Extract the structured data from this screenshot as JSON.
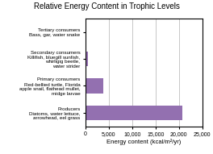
{
  "chart_data": {
    "type": "bar",
    "orientation": "horizontal",
    "title": "Relative Energy Content in Trophic Levels",
    "categories": [
      "Producers\nDiatoms, water lettuce,\narrowhead, eel grass",
      "Primary consumers\nRed-bellied turtle, Florida\napple snail, flathead mullet,\nmidge larvae",
      "Secondary consumers\nKillifish, bluegill sunfish,\nwhirligig beetle,\nwater strider",
      "Tertiary consumers\nBass, gar, water snake"
    ],
    "values": [
      20810,
      3800,
      500,
      100
    ],
    "color": "#9370b0",
    "xlabel": "Energy content (kcal/m²/yr)",
    "xlim": [
      0,
      25000
    ],
    "xticks": [
      0,
      {
        "value": 5000,
        "label": "5,000"
      },
      {
        "value": 10000,
        "label": "10,000"
      },
      {
        "value": 15000,
        "label": "15,000"
      },
      {
        "value": 20000,
        "label": "20,000"
      },
      {
        "value": 25000,
        "label": "25,000"
      }
    ],
    "grid": true
  }
}
